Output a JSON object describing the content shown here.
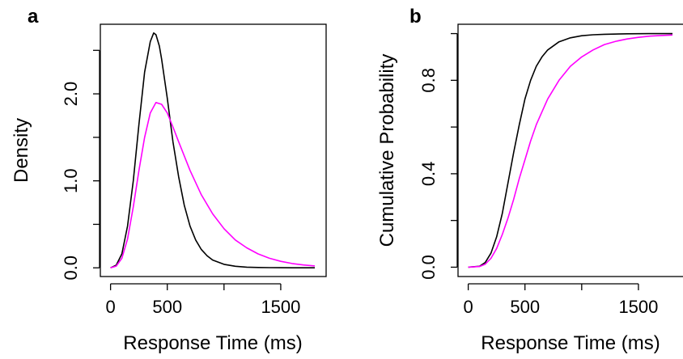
{
  "chart_data": [
    {
      "type": "line",
      "panel_label": "a",
      "title": "",
      "xlabel": "Response Time (ms)",
      "ylabel": "Density",
      "xlim": [
        -90,
        1900
      ],
      "ylim": [
        -0.1,
        2.8
      ],
      "x_ticks": [
        0,
        500,
        1000,
        1500
      ],
      "x_tick_labels": [
        "0",
        "500",
        "",
        "1500"
      ],
      "y_ticks": [
        0.0,
        0.5,
        1.0,
        1.5,
        2.0,
        2.5
      ],
      "y_tick_labels": [
        "0.0",
        "",
        "1.0",
        "",
        "2.0",
        ""
      ],
      "grid": false,
      "series": [
        {
          "color": "#000000",
          "x": [
            0,
            50,
            100,
            150,
            200,
            250,
            300,
            350,
            380,
            400,
            430,
            450,
            500,
            550,
            600,
            650,
            700,
            750,
            800,
            850,
            900,
            1000,
            1100,
            1200,
            1300,
            1400,
            1500,
            1600,
            1700,
            1800
          ],
          "y": [
            0.0,
            0.03,
            0.16,
            0.48,
            1.0,
            1.65,
            2.25,
            2.6,
            2.7,
            2.68,
            2.55,
            2.4,
            1.95,
            1.45,
            1.05,
            0.72,
            0.48,
            0.32,
            0.21,
            0.14,
            0.09,
            0.04,
            0.018,
            0.008,
            0.004,
            0.002,
            0.001,
            0.0,
            0.0,
            0.0
          ]
        },
        {
          "color": "#ff00ff",
          "x": [
            0,
            50,
            100,
            150,
            200,
            250,
            300,
            350,
            400,
            450,
            500,
            550,
            600,
            700,
            800,
            900,
            1000,
            1100,
            1200,
            1300,
            1400,
            1500,
            1600,
            1700,
            1800
          ],
          "y": [
            0.0,
            0.02,
            0.11,
            0.33,
            0.7,
            1.12,
            1.5,
            1.78,
            1.9,
            1.88,
            1.78,
            1.62,
            1.45,
            1.12,
            0.84,
            0.62,
            0.45,
            0.32,
            0.23,
            0.16,
            0.11,
            0.075,
            0.05,
            0.033,
            0.022
          ]
        }
      ]
    },
    {
      "type": "line",
      "panel_label": "b",
      "title": "",
      "xlabel": "Response Time (ms)",
      "ylabel": "Cumulative Probability",
      "xlim": [
        -90,
        1900
      ],
      "ylim": [
        -0.04,
        1.04
      ],
      "x_ticks": [
        0,
        500,
        1000,
        1500
      ],
      "x_tick_labels": [
        "0",
        "500",
        "",
        "1500"
      ],
      "y_ticks": [
        0.0,
        0.2,
        0.4,
        0.6,
        0.8,
        1.0
      ],
      "y_tick_labels": [
        "0.0",
        "",
        "0.4",
        "",
        "0.8",
        ""
      ],
      "grid": false,
      "series": [
        {
          "color": "#000000",
          "x": [
            0,
            100,
            150,
            200,
            250,
            300,
            350,
            400,
            450,
            500,
            550,
            600,
            650,
            700,
            800,
            900,
            1000,
            1100,
            1200,
            1400,
            1600,
            1800
          ],
          "y": [
            0.0,
            0.004,
            0.02,
            0.06,
            0.13,
            0.23,
            0.36,
            0.49,
            0.61,
            0.72,
            0.8,
            0.86,
            0.9,
            0.93,
            0.965,
            0.982,
            0.991,
            0.995,
            0.997,
            0.999,
            1.0,
            1.0
          ]
        },
        {
          "color": "#ff00ff",
          "x": [
            0,
            100,
            150,
            200,
            250,
            300,
            350,
            400,
            450,
            500,
            550,
            600,
            700,
            800,
            900,
            1000,
            1100,
            1200,
            1300,
            1400,
            1500,
            1600,
            1700,
            1800
          ],
          "y": [
            0.0,
            0.003,
            0.013,
            0.038,
            0.08,
            0.14,
            0.21,
            0.29,
            0.38,
            0.46,
            0.54,
            0.61,
            0.72,
            0.8,
            0.86,
            0.9,
            0.93,
            0.953,
            0.967,
            0.977,
            0.984,
            0.989,
            0.992,
            0.994
          ]
        }
      ]
    }
  ]
}
